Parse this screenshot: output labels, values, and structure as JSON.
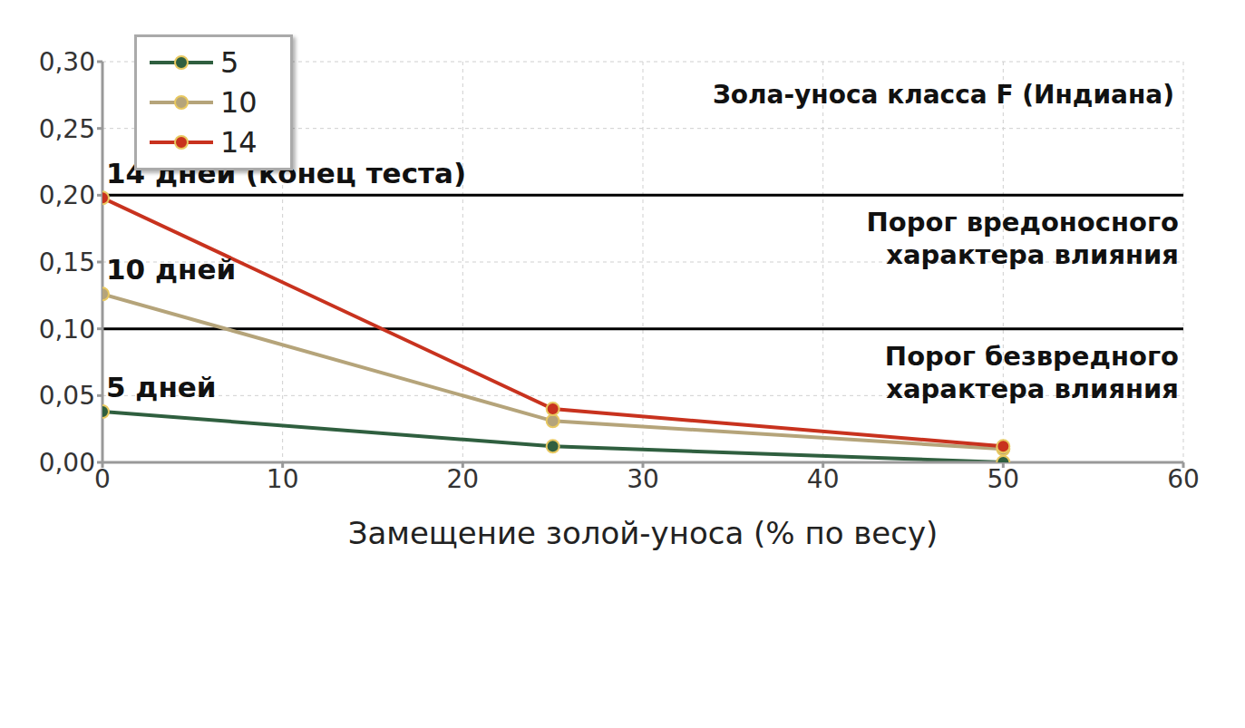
{
  "chart_data": {
    "type": "line",
    "title": "Зола-уноса класса F (Индиана)",
    "x_label": "Замещение золой-уноса (% по весу)",
    "x": [
      0,
      25,
      50
    ],
    "series": [
      {
        "name": "5",
        "label": "5 дней",
        "color": "#2f5f3f",
        "values": [
          0.038,
          0.012,
          0.0
        ]
      },
      {
        "name": "10",
        "label": "10 дней",
        "color": "#b5a47a",
        "values": [
          0.126,
          0.031,
          0.01
        ]
      },
      {
        "name": "14",
        "label": "14 дней (конец теста)",
        "color": "#c8321e",
        "values": [
          0.198,
          0.04,
          0.012
        ]
      }
    ],
    "reference_lines": [
      {
        "value": 0.2,
        "label": [
          "Порог вредоносного",
          "характера влияния"
        ]
      },
      {
        "value": 0.1,
        "label": [
          "Порог безвредного",
          "характера влияния"
        ]
      }
    ],
    "xlim": [
      0,
      60
    ],
    "xticks": [
      0,
      10,
      20,
      30,
      40,
      50,
      60
    ],
    "ylim": [
      0,
      0.3
    ],
    "yticks": [
      {
        "value": 0,
        "label": "0,00"
      },
      {
        "value": 0.05,
        "label": "0,05"
      },
      {
        "value": 0.1,
        "label": "0,10"
      },
      {
        "value": 0.15,
        "label": "0,15"
      },
      {
        "value": 0.2,
        "label": "0,20"
      },
      {
        "value": 0.25,
        "label": "0,25"
      },
      {
        "value": 0.3,
        "label": "0,30"
      }
    ],
    "grid": true,
    "legend": "upper left",
    "marker": "circle",
    "line_style": "solid"
  }
}
